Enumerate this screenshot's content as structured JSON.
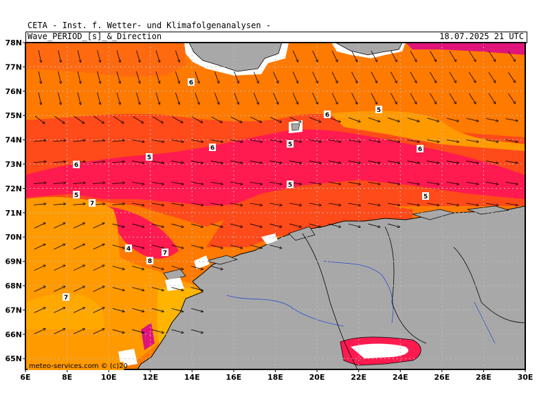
{
  "header": {
    "title": "CETA - Inst. f. Wetter- und Klimafolgenanalysen -",
    "subtitle": "Wave_PERIOD_[s]_&_Direction",
    "timestamp": "18.07.2025 21 UTC"
  },
  "axes": {
    "lat_labels": [
      "78N",
      "77N",
      "76N",
      "75N",
      "74N",
      "73N",
      "72N",
      "71N",
      "70N",
      "69N",
      "68N",
      "67N",
      "66N",
      "65N"
    ],
    "lon_labels": [
      "6E",
      "8E",
      "10E",
      "12E",
      "14E",
      "16E",
      "18E",
      "20E",
      "22E",
      "24E",
      "26E",
      "28E",
      "30E"
    ]
  },
  "colors": {
    "period_4_5": "#ff1a4f",
    "period_5_6": "#ff5a1f",
    "period_6_7": "#ff7a00",
    "period_7_8": "#ff9a00",
    "period_8_9": "#ffb400",
    "period_low": "#e0147a",
    "land": "#a8a8a8"
  },
  "contour_labels": [
    "6",
    "6",
    "6",
    "5",
    "6",
    "5",
    "5",
    "6",
    "5",
    "5",
    "7",
    "5",
    "4",
    "7",
    "8",
    "7"
  ],
  "watermark": "meteo-services.com © (c)20"
}
